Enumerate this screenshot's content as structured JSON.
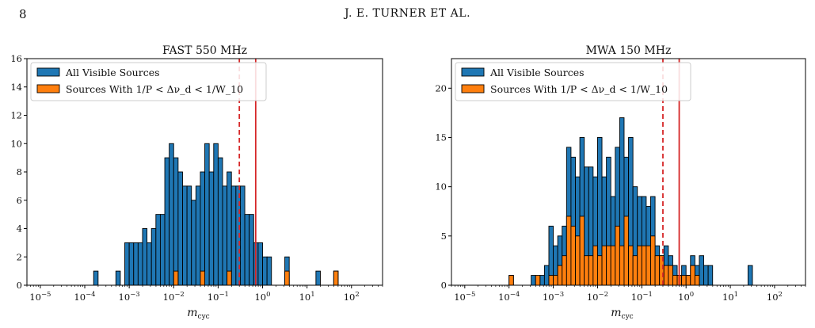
{
  "header": {
    "page_number": "8",
    "running_head": "J. E. TURNER ET AL."
  },
  "colors": {
    "all_sources": "#1f77b4",
    "subset_sources": "#ff7f0e",
    "vline": "#d62728",
    "bar_edge": "#000000"
  },
  "chart_data": [
    {
      "type": "bar",
      "title": "FAST 550 MHz",
      "xlabel": "m_cyc",
      "ylabel": "",
      "xscale": "log",
      "xlim": [
        5e-06,
        500
      ],
      "ylim": [
        0,
        16
      ],
      "yticks": [
        0,
        2,
        4,
        6,
        8,
        10,
        12,
        14,
        16
      ],
      "xticks": [
        "10^-5",
        "10^-4",
        "10^-3",
        "10^-2",
        "10^-1",
        "10^0",
        "10^1",
        "10^2"
      ],
      "bin_log_start": -5,
      "bin_log_width": 0.1,
      "legend_position": "top-left",
      "legend": [
        "All Visible Sources",
        "Sources With 1/P < Δν_d < 1/W_10"
      ],
      "vlines": [
        {
          "x": 0.3,
          "style": "dashed"
        },
        {
          "x": 0.7,
          "style": "solid"
        }
      ],
      "series": [
        {
          "name": "All Visible Sources",
          "bins": [
            [
              -3.8,
              1
            ],
            [
              -3.3,
              1
            ],
            [
              -3.1,
              3
            ],
            [
              -3.0,
              3
            ],
            [
              -2.9,
              3
            ],
            [
              -2.8,
              3
            ],
            [
              -2.7,
              4
            ],
            [
              -2.6,
              3
            ],
            [
              -2.5,
              4
            ],
            [
              -2.4,
              5
            ],
            [
              -2.3,
              5
            ],
            [
              -2.2,
              9
            ],
            [
              -2.1,
              10
            ],
            [
              -2.0,
              9
            ],
            [
              -1.9,
              8
            ],
            [
              -1.8,
              7
            ],
            [
              -1.7,
              7
            ],
            [
              -1.6,
              6
            ],
            [
              -1.5,
              7
            ],
            [
              -1.4,
              8
            ],
            [
              -1.3,
              10
            ],
            [
              -1.2,
              8
            ],
            [
              -1.1,
              10
            ],
            [
              -1.0,
              9
            ],
            [
              -0.9,
              7
            ],
            [
              -0.8,
              8
            ],
            [
              -0.7,
              7
            ],
            [
              -0.6,
              7
            ],
            [
              -0.5,
              7
            ],
            [
              -0.4,
              5
            ],
            [
              -0.3,
              5
            ],
            [
              -0.2,
              3
            ],
            [
              -0.1,
              3
            ],
            [
              0.0,
              2
            ],
            [
              0.1,
              2
            ],
            [
              0.5,
              2
            ],
            [
              1.2,
              1
            ],
            [
              1.6,
              1
            ]
          ]
        },
        {
          "name": "Sources With 1/P < Δν_d < 1/W_10",
          "bins": [
            [
              -2.0,
              1
            ],
            [
              -1.4,
              1
            ],
            [
              -0.8,
              1
            ],
            [
              0.5,
              1
            ],
            [
              1.6,
              1
            ]
          ]
        }
      ]
    },
    {
      "type": "bar",
      "title": "MWA 150 MHz",
      "xlabel": "m_cyc",
      "ylabel": "",
      "xscale": "log",
      "xlim": [
        5e-06,
        500
      ],
      "ylim": [
        0,
        23
      ],
      "yticks": [
        0,
        5,
        10,
        15,
        20
      ],
      "xticks": [
        "10^-5",
        "10^-4",
        "10^-3",
        "10^-2",
        "10^-1",
        "10^0",
        "10^1",
        "10^2"
      ],
      "bin_log_start": -5,
      "bin_log_width": 0.1,
      "legend_position": "top-left",
      "legend": [
        "All Visible Sources",
        "Sources With 1/P < Δν_d < 1/W_10"
      ],
      "vlines": [
        {
          "x": 0.3,
          "style": "dashed"
        },
        {
          "x": 0.7,
          "style": "solid"
        }
      ],
      "series": [
        {
          "name": "All Visible Sources",
          "bins": [
            [
              -4.0,
              1
            ],
            [
              -3.5,
              1
            ],
            [
              -3.3,
              1
            ],
            [
              -3.2,
              2
            ],
            [
              -3.1,
              6
            ],
            [
              -3.0,
              4
            ],
            [
              -2.9,
              5
            ],
            [
              -2.8,
              6
            ],
            [
              -2.7,
              14
            ],
            [
              -2.6,
              13
            ],
            [
              -2.5,
              11
            ],
            [
              -2.4,
              15
            ],
            [
              -2.3,
              12
            ],
            [
              -2.2,
              12
            ],
            [
              -2.1,
              11
            ],
            [
              -2.0,
              15
            ],
            [
              -1.9,
              11
            ],
            [
              -1.8,
              13
            ],
            [
              -1.7,
              9
            ],
            [
              -1.6,
              14
            ],
            [
              -1.5,
              17
            ],
            [
              -1.4,
              13
            ],
            [
              -1.3,
              15
            ],
            [
              -1.2,
              10
            ],
            [
              -1.1,
              9
            ],
            [
              -1.0,
              9
            ],
            [
              -0.9,
              8
            ],
            [
              -0.8,
              9
            ],
            [
              -0.7,
              4
            ],
            [
              -0.6,
              3
            ],
            [
              -0.5,
              4
            ],
            [
              -0.4,
              3
            ],
            [
              -0.3,
              2
            ],
            [
              -0.2,
              1
            ],
            [
              -0.1,
              2
            ],
            [
              0.0,
              1
            ],
            [
              0.1,
              3
            ],
            [
              0.2,
              2
            ],
            [
              0.3,
              3
            ],
            [
              0.4,
              2
            ],
            [
              0.5,
              2
            ],
            [
              1.4,
              2
            ]
          ]
        },
        {
          "name": "Sources With 1/P < Δν_d < 1/W_10",
          "bins": [
            [
              -4.0,
              1
            ],
            [
              -3.4,
              1
            ],
            [
              -3.1,
              1
            ],
            [
              -3.0,
              1
            ],
            [
              -2.9,
              2
            ],
            [
              -2.8,
              3
            ],
            [
              -2.7,
              7
            ],
            [
              -2.6,
              6
            ],
            [
              -2.5,
              5
            ],
            [
              -2.4,
              7
            ],
            [
              -2.3,
              3
            ],
            [
              -2.2,
              3
            ],
            [
              -2.1,
              4
            ],
            [
              -2.0,
              3
            ],
            [
              -1.9,
              4
            ],
            [
              -1.8,
              4
            ],
            [
              -1.7,
              4
            ],
            [
              -1.6,
              6
            ],
            [
              -1.5,
              4
            ],
            [
              -1.4,
              7
            ],
            [
              -1.3,
              4
            ],
            [
              -1.2,
              3
            ],
            [
              -1.1,
              4
            ],
            [
              -1.0,
              4
            ],
            [
              -0.9,
              4
            ],
            [
              -0.8,
              5
            ],
            [
              -0.7,
              3
            ],
            [
              -0.6,
              3
            ],
            [
              -0.5,
              2
            ],
            [
              -0.4,
              2
            ],
            [
              -0.3,
              1
            ],
            [
              -0.2,
              1
            ],
            [
              -0.1,
              1
            ],
            [
              0.0,
              1
            ],
            [
              0.1,
              2
            ],
            [
              0.2,
              1
            ]
          ]
        }
      ]
    }
  ]
}
